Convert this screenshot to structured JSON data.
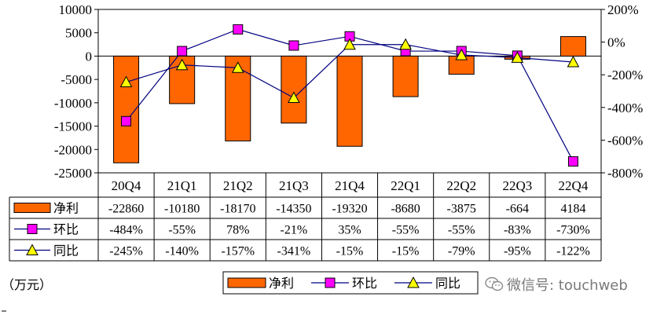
{
  "chart_data": {
    "type": "bar",
    "categories": [
      "20Q4",
      "21Q1",
      "21Q2",
      "21Q3",
      "21Q4",
      "22Q1",
      "22Q2",
      "22Q3",
      "22Q4"
    ],
    "series": [
      {
        "name": "净利",
        "type": "bar",
        "axis": "left",
        "color": "#FF6600",
        "values": [
          -22860,
          -10180,
          -18170,
          -14350,
          -19320,
          -8680,
          -3875,
          -664,
          4184
        ],
        "labels": [
          "-22860",
          "-10180",
          "-18170",
          "-14350",
          "-19320",
          "-8680",
          "-3875",
          "-664",
          "4184"
        ]
      },
      {
        "name": "环比",
        "type": "line",
        "axis": "right",
        "color": "#FF00FF",
        "marker": "square",
        "values": [
          -484,
          -55,
          78,
          -21,
          35,
          -55,
          -55,
          -83,
          -730
        ],
        "labels": [
          "-484%",
          "-55%",
          "78%",
          "-21%",
          "35%",
          "-55%",
          "-55%",
          "-83%",
          "-730%"
        ]
      },
      {
        "name": "同比",
        "type": "line",
        "axis": "right",
        "color": "#FFFF00",
        "marker": "triangle",
        "values": [
          -245,
          -140,
          -157,
          -341,
          -15,
          -15,
          -79,
          -95,
          -122
        ],
        "labels": [
          "-245%",
          "-140%",
          "-157%",
          "-341%",
          "-15%",
          "-15%",
          "-79%",
          "-95%",
          "-122%"
        ]
      }
    ],
    "y_left": {
      "ylim": [
        -25000,
        10000
      ],
      "ticks": [
        "10000",
        "5000",
        "0",
        "-5000",
        "-10000",
        "-15000",
        "-20000",
        "-25000"
      ]
    },
    "y_right": {
      "ylim": [
        -800,
        200
      ],
      "ticks": [
        "200%",
        "0%",
        "-200%",
        "-400%",
        "-600%",
        "-800%"
      ]
    },
    "unit_label": "（万元）",
    "legend": {
      "position": "bottom",
      "items": [
        "净利",
        "环比",
        "同比"
      ]
    },
    "watermark": "微信号: touchweb",
    "watermark_icon": "wechat-icon",
    "data_table": true
  }
}
